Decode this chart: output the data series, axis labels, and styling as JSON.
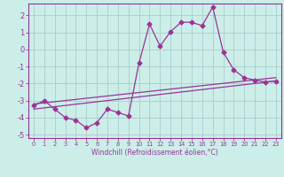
{
  "xlabel": "Windchill (Refroidissement éolien,°C)",
  "bg_color": "#cceee8",
  "grid_color": "#aacccc",
  "line_color": "#993399",
  "xlim": [
    -0.5,
    23.5
  ],
  "ylim": [
    -5.2,
    2.7
  ],
  "yticks": [
    -5,
    -4,
    -3,
    -2,
    -1,
    0,
    1,
    2
  ],
  "xticks": [
    0,
    1,
    2,
    3,
    4,
    5,
    6,
    7,
    8,
    9,
    10,
    11,
    12,
    13,
    14,
    15,
    16,
    17,
    18,
    19,
    20,
    21,
    22,
    23
  ],
  "main_x": [
    0,
    1,
    2,
    3,
    4,
    5,
    6,
    7,
    8,
    9,
    10,
    11,
    12,
    13,
    14,
    15,
    16,
    17,
    18,
    19,
    20,
    21,
    22,
    23
  ],
  "main_y": [
    -3.3,
    -3.0,
    -3.5,
    -4.0,
    -4.15,
    -4.6,
    -4.3,
    -3.5,
    -3.7,
    -3.9,
    -0.8,
    1.5,
    0.2,
    1.05,
    1.6,
    1.6,
    1.4,
    2.5,
    -0.15,
    -1.2,
    -1.65,
    -1.8,
    -1.9,
    -1.85
  ],
  "line2_x": [
    0,
    23
  ],
  "line2_y": [
    -3.2,
    -1.65
  ],
  "line3_x": [
    0,
    23
  ],
  "line3_y": [
    -3.5,
    -1.85
  ]
}
